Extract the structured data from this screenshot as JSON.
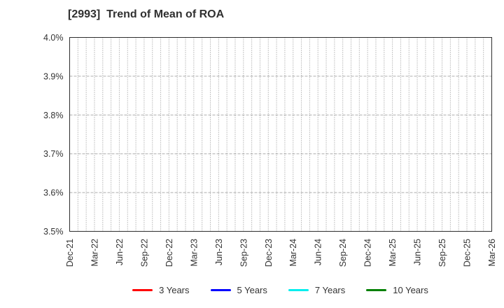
{
  "title": "[2993]  Trend of Mean of ROA",
  "legend": {
    "items": [
      {
        "label": "3 Years",
        "color": "#ff0000"
      },
      {
        "label": "5 Years",
        "color": "#0000ff"
      },
      {
        "label": "7 Years",
        "color": "#00eeee"
      },
      {
        "label": "10 Years",
        "color": "#008000"
      }
    ]
  },
  "chart_data": {
    "type": "line",
    "title": "[2993]  Trend of Mean of ROA",
    "xlabel": "",
    "ylabel": "",
    "ylim": [
      3.5,
      4.0
    ],
    "y_unit": "%",
    "y_tick_labels": [
      "3.5%",
      "3.6%",
      "3.7%",
      "3.8%",
      "3.9%",
      "4.0%"
    ],
    "x_tick_labels": [
      "Dec-21",
      "Mar-22",
      "Jun-22",
      "Sep-22",
      "Dec-22",
      "Mar-23",
      "Jun-23",
      "Sep-23",
      "Dec-23",
      "Mar-24",
      "Jun-24",
      "Sep-24",
      "Dec-24",
      "Mar-25",
      "Jun-25",
      "Sep-25",
      "Dec-25",
      "Mar-26"
    ],
    "x_minor_ticks_per_label_interval": 3,
    "grid": true,
    "legend_position": "bottom",
    "series": [
      {
        "name": "3 Years",
        "color": "#ff0000",
        "values": []
      },
      {
        "name": "5 Years",
        "color": "#0000ff",
        "values": []
      },
      {
        "name": "7 Years",
        "color": "#00eeee",
        "values": []
      },
      {
        "name": "10 Years",
        "color": "#008000",
        "values": []
      }
    ]
  },
  "colors": {
    "background": "#ffffff",
    "title_text": "#303030",
    "axis_text": "#333333",
    "plot_border": "#2e2e2e",
    "x_grid": "#8f8f8f",
    "y_grid": "#adadad"
  }
}
